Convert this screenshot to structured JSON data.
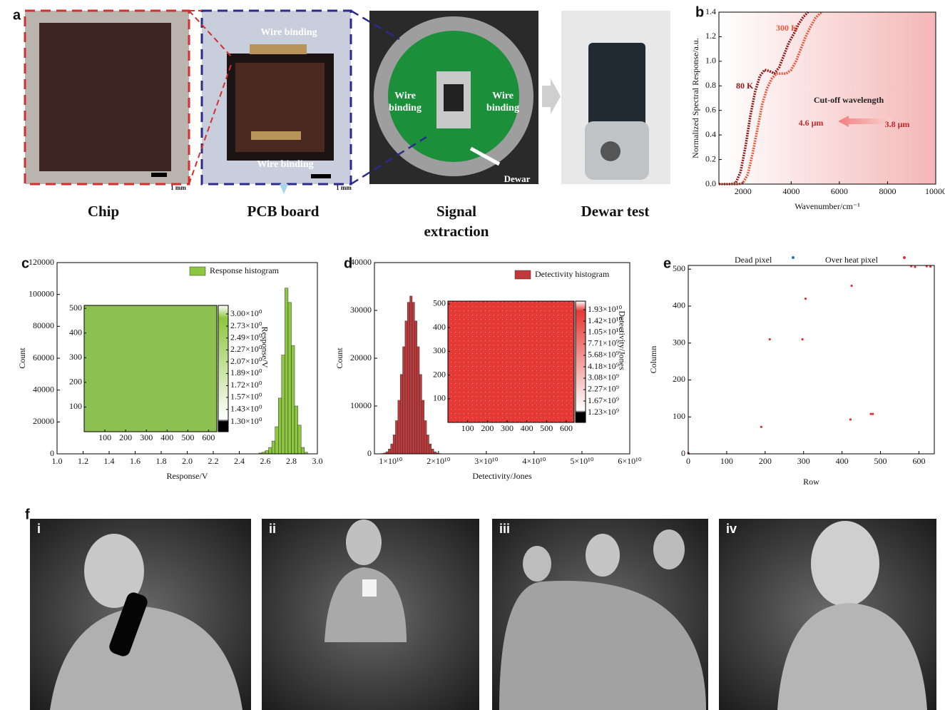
{
  "panel_labels": [
    "a",
    "b",
    "c",
    "d",
    "e",
    "f"
  ],
  "panel_a": {
    "captions": [
      "Chip",
      "PCB board",
      "Signal extraction",
      "Dewar test"
    ],
    "annotations": [
      "Wire binding",
      "Wire binding",
      "Wire binding",
      "Wire binding",
      "Dewar",
      "1 mm",
      "1 mm"
    ]
  },
  "panel_f": {
    "photo_labels": [
      "i",
      "ii",
      "iii",
      "iv"
    ]
  },
  "chart_data": [
    {
      "type": "line",
      "xlabel": "Wavenumber/cm⁻¹",
      "ylabel": "Normalized Spectral Response/a.u.",
      "xlim": [
        1000,
        10000
      ],
      "xticks": [
        2000,
        4000,
        6000,
        8000,
        10000
      ],
      "ylim": [
        0,
        1.4
      ],
      "yticks": [
        {
          "value": 0,
          "label": "0.0"
        },
        0.2,
        0.4,
        0.6,
        0.8,
        {
          "value": 1,
          "label": "1.0"
        },
        1.2,
        1.4
      ],
      "series": [
        {
          "name": "80 K",
          "color": "#8b1a1a",
          "x": [
            1000,
            1500,
            1700,
            1900,
            2100,
            2300,
            2500,
            2700,
            2900,
            3100,
            3300,
            3500,
            3700,
            3900,
            4100,
            4300,
            4500,
            4700
          ],
          "values": [
            0,
            0,
            0.01,
            0.1,
            0.3,
            0.55,
            0.75,
            0.88,
            0.93,
            0.92,
            0.9,
            0.95,
            1.05,
            1.15,
            1.22,
            1.3,
            1.36,
            1.4
          ]
        },
        {
          "name": "300 K",
          "color": "#e8583a",
          "x": [
            1000,
            1800,
            2000,
            2200,
            2400,
            2600,
            2800,
            3000,
            3200,
            3400,
            3600,
            3800,
            4000,
            4200,
            4400,
            4600,
            4800,
            5000,
            5200,
            5300
          ],
          "values": [
            0,
            0,
            0.01,
            0.08,
            0.25,
            0.45,
            0.65,
            0.78,
            0.86,
            0.9,
            0.9,
            0.9,
            0.93,
            1.0,
            1.1,
            1.2,
            1.28,
            1.35,
            1.39,
            1.4
          ]
        }
      ],
      "annotations": [
        "Cut-off wavelength",
        "4.6 μm",
        "3.8 μm"
      ]
    },
    {
      "type": "histogram",
      "xlabel": "Response/V",
      "ylabel": "Count",
      "xlim": [
        1.0,
        3.0
      ],
      "xticks": [
        {
          "value": 1,
          "label": "1.0"
        },
        1.2,
        1.4,
        1.6,
        1.8,
        {
          "value": 2,
          "label": "2.0"
        },
        2.2,
        2.4,
        2.6,
        2.8,
        {
          "value": 3,
          "label": "3.0"
        }
      ],
      "ylim": [
        0,
        120000
      ],
      "yticks": [
        0,
        20000,
        40000,
        60000,
        80000,
        100000,
        120000
      ],
      "bins": [
        2.55,
        2.575,
        2.6,
        2.625,
        2.65,
        2.675,
        2.7,
        2.725,
        2.75,
        2.775,
        2.8,
        2.825,
        2.85,
        2.875,
        2.9,
        2.925
      ],
      "values": [
        500,
        1000,
        2000,
        4000,
        8000,
        17000,
        35000,
        62000,
        104000,
        95000,
        68000,
        30000,
        18000,
        4000,
        1000
      ],
      "legend": "Response histogram",
      "color": "#8dc63f",
      "inset": {
        "xlim": [
          0,
          640
        ],
        "xticks": [
          100,
          200,
          300,
          400,
          500,
          600
        ],
        "ylim": [
          0,
          512
        ],
        "yticks": [
          100,
          200,
          300,
          400,
          500
        ],
        "color": "#8cc152",
        "colorbar_label": "Response/V",
        "colorbar_ticks": [
          {
            "value": 3.0,
            "label": "3.00×10⁰"
          },
          {
            "value": 2.73,
            "label": "2.73×10⁰"
          },
          {
            "value": 2.49,
            "label": "2.49×10⁰"
          },
          {
            "value": 2.27,
            "label": "2.27×10⁰"
          },
          {
            "value": 2.07,
            "label": "2.07×10⁰"
          },
          {
            "value": 1.89,
            "label": "1.89×10⁰"
          },
          {
            "value": 1.72,
            "label": "1.72×10⁰"
          },
          {
            "value": 1.57,
            "label": "1.57×10⁰"
          },
          {
            "value": 1.43,
            "label": "1.43×10⁰"
          },
          {
            "value": 1.3,
            "label": "1.30×10⁰"
          }
        ]
      }
    },
    {
      "type": "histogram",
      "xlabel": "Detectivity/Jones",
      "ylabel": "Count",
      "xlim": [
        6600000000.0,
        60000000000.0
      ],
      "xticks": [
        {
          "value": 10000000000.0,
          "label": "1×10¹⁰"
        },
        {
          "value": 20000000000.0,
          "label": "2×10¹⁰"
        },
        {
          "value": 30000000000.0,
          "label": "3×10¹⁰"
        },
        {
          "value": 40000000000.0,
          "label": "4×10¹⁰"
        },
        {
          "value": 50000000000.0,
          "label": "5×10¹⁰"
        },
        {
          "value": 60000000000.0,
          "label": "6×10¹⁰"
        }
      ],
      "ylim": [
        0,
        40000
      ],
      "yticks": [
        0,
        10000,
        20000,
        30000,
        40000
      ],
      "bins": [
        7500000000.0,
        8000000000.0,
        8500000000.0,
        9000000000.0,
        9500000000.0,
        10000000000.0,
        10500000000.0,
        11000000000.0,
        11500000000.0,
        12000000000.0,
        12500000000.0,
        13000000000.0,
        13500000000.0,
        14000000000.0,
        14500000000.0,
        15000000000.0,
        15500000000.0,
        16000000000.0,
        16500000000.0,
        17000000000.0,
        17500000000.0,
        18000000000.0,
        18500000000.0,
        19000000000.0,
        19500000000.0,
        20000000000.0,
        20500000000.0
      ],
      "values": [
        22,
        65,
        177,
        435,
        1000,
        2070,
        3960,
        6940,
        11200,
        16600,
        22400,
        27800,
        31700,
        33000,
        31700,
        27800,
        22400,
        16600,
        11200,
        6940,
        3960,
        2070,
        1000,
        435,
        177,
        65
      ],
      "legend": "Detectivity histogram",
      "color": "#c0393b",
      "inset": {
        "xlim": [
          0,
          640
        ],
        "xticks": [
          100,
          200,
          300,
          400,
          500,
          600
        ],
        "ylim": [
          0,
          512
        ],
        "yticks": [
          100,
          200,
          300,
          400,
          500
        ],
        "color": "#e53935",
        "colorbar_label": "Detectivity/Jones",
        "colorbar_ticks": [
          {
            "value": 19300000000.0,
            "label": "1.93×10¹⁰"
          },
          {
            "value": 14200000000.0,
            "label": "1.42×10¹⁰"
          },
          {
            "value": 10500000000.0,
            "label": "1.05×10¹⁰"
          },
          {
            "value": 7710000000.0,
            "label": "7.71×10⁹"
          },
          {
            "value": 5680000000.0,
            "label": "5.68×10⁹"
          },
          {
            "value": 4180000000.0,
            "label": "4.18×10⁹"
          },
          {
            "value": 3080000000.0,
            "label": "3.08×10⁹"
          },
          {
            "value": 2270000000.0,
            "label": "2.27×10⁹"
          },
          {
            "value": 1670000000.0,
            "label": "1.67×10⁹"
          },
          {
            "value": 1230000000.0,
            "label": "1.23×10⁹"
          }
        ]
      }
    },
    {
      "type": "scatter",
      "xlabel": "Row",
      "ylabel": "Column",
      "xlim": [
        0,
        640
      ],
      "xticks": [
        0,
        100,
        200,
        300,
        400,
        500,
        600
      ],
      "ylim": [
        0,
        510
      ],
      "yticks": [
        0,
        100,
        200,
        300,
        400,
        500
      ],
      "series": [
        {
          "name": "Dead pixel",
          "color": "#2e75b6",
          "x": [
            1
          ],
          "values": [
            1
          ]
        },
        {
          "name": "Over heat pixel",
          "color": "#e0303a",
          "x": [
            0,
            190,
            212,
            297,
            305,
            422,
            425,
            475,
            480,
            580,
            590,
            620,
            630
          ],
          "values": [
            2,
            73,
            310,
            310,
            420,
            93,
            455,
            108,
            108,
            508,
            506,
            508,
            507
          ]
        }
      ]
    }
  ]
}
